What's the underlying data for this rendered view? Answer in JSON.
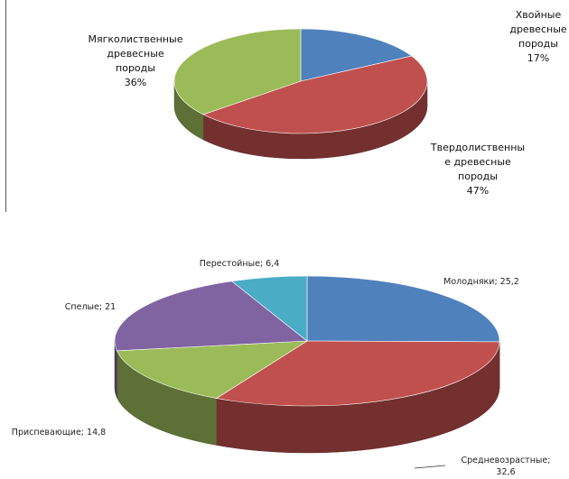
{
  "chart_data": [
    {
      "type": "pie",
      "style": "3d",
      "categories": [
        "Хвойные древесные породы",
        "Твердолиственные древесные породы",
        "Мягколиственные древесные породы"
      ],
      "values": [
        17,
        47,
        36
      ],
      "unit": "%",
      "colors": [
        "#4F81BD",
        "#C0504D",
        "#9BBB59"
      ],
      "labels": [
        [
          "Хвойные",
          "древесные",
          "породы",
          "17%"
        ],
        [
          "Твердолиственны",
          "е древесные",
          "породы",
          "47%"
        ],
        [
          "Мягколиственные",
          "древесные",
          "породы",
          "36%"
        ]
      ]
    },
    {
      "type": "pie",
      "style": "3d",
      "categories": [
        "Молодняки",
        "Средневозрастные",
        "Приспевающие",
        "Спелые",
        "Перестойные"
      ],
      "values": [
        25.2,
        32.6,
        14.8,
        21,
        6.4
      ],
      "colors": [
        "#4F81BD",
        "#C0504D",
        "#9BBB59",
        "#8064A2",
        "#4BACC6"
      ],
      "labels": [
        [
          "Молодняки; 25,2"
        ],
        [
          "Средневозрастные;",
          "32,6"
        ],
        [
          "Приспевающие; 14,8"
        ],
        [
          "Спелые; 21"
        ],
        [
          "Перестойные; 6,4"
        ]
      ]
    }
  ]
}
